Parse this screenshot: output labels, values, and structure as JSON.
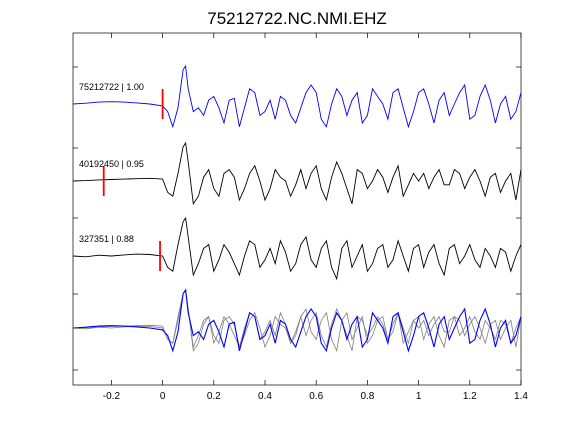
{
  "chart_data": {
    "type": "line",
    "title": "75212722.NC.NMI.EHZ",
    "xlabel": "",
    "ylabel": "",
    "xlim": [
      -0.35,
      1.4
    ],
    "x_ticks": [
      "-0.2",
      "0",
      "0.2",
      "0.4",
      "0.6",
      "0.8",
      "1",
      "1.2",
      "1.4"
    ],
    "x_tick_values": [
      -0.2,
      0,
      0.2,
      0.4,
      0.6,
      0.8,
      1.0,
      1.2,
      1.4
    ],
    "grid": false,
    "colors": {
      "main": "#0000ff",
      "other": "#000000",
      "overlay_gray": "#7f7f7f",
      "pick": "#ff0000"
    },
    "series": [
      {
        "label": "75212722 | 1.00",
        "color": "#0000ff",
        "pick_time": 0.0,
        "x": [
          -0.35,
          -0.3,
          -0.25,
          -0.2,
          -0.15,
          -0.1,
          -0.05,
          0.0,
          0.02,
          0.04,
          0.06,
          0.08,
          0.09,
          0.1,
          0.12,
          0.14,
          0.16,
          0.18,
          0.2,
          0.22,
          0.24,
          0.26,
          0.28,
          0.3,
          0.32,
          0.34,
          0.36,
          0.38,
          0.4,
          0.42,
          0.44,
          0.46,
          0.48,
          0.5,
          0.52,
          0.54,
          0.56,
          0.58,
          0.6,
          0.62,
          0.64,
          0.66,
          0.68,
          0.7,
          0.72,
          0.74,
          0.76,
          0.78,
          0.8,
          0.82,
          0.84,
          0.86,
          0.88,
          0.9,
          0.92,
          0.94,
          0.96,
          0.98,
          1.0,
          1.02,
          1.04,
          1.06,
          1.08,
          1.1,
          1.12,
          1.14,
          1.16,
          1.18,
          1.2,
          1.22,
          1.24,
          1.26,
          1.28,
          1.3,
          1.32,
          1.34,
          1.36,
          1.38,
          1.4
        ],
        "y": [
          0.0,
          0.02,
          0.05,
          0.06,
          0.05,
          0.03,
          0.0,
          -0.05,
          -0.2,
          -0.6,
          -0.1,
          0.9,
          1.0,
          0.4,
          -0.2,
          -0.1,
          -0.3,
          0.1,
          0.2,
          -0.1,
          -0.5,
          0.1,
          0.15,
          -0.6,
          -0.1,
          0.4,
          0.3,
          -0.3,
          -0.2,
          0.1,
          -0.4,
          0.2,
          0.1,
          -0.3,
          -0.5,
          -0.1,
          0.3,
          0.5,
          0.3,
          -0.4,
          -0.6,
          0.0,
          0.4,
          0.2,
          -0.3,
          0.1,
          0.3,
          -0.5,
          -0.3,
          0.4,
          0.2,
          0.0,
          -0.4,
          0.3,
          0.4,
          -0.1,
          -0.6,
          -0.2,
          0.3,
          0.4,
          0.0,
          -0.5,
          0.1,
          0.3,
          -0.3,
          0.0,
          0.3,
          0.5,
          -0.4,
          -0.3,
          0.2,
          0.5,
          0.1,
          -0.5,
          0.0,
          0.2,
          -0.4,
          -0.2,
          0.3
        ]
      },
      {
        "label": "40192450 | 0.95",
        "color": "#000000",
        "pick_time": -0.23,
        "x": [
          -0.35,
          -0.3,
          -0.25,
          -0.2,
          -0.15,
          -0.1,
          -0.05,
          0.0,
          0.02,
          0.04,
          0.06,
          0.08,
          0.09,
          0.1,
          0.12,
          0.14,
          0.16,
          0.18,
          0.2,
          0.22,
          0.24,
          0.26,
          0.28,
          0.3,
          0.32,
          0.34,
          0.36,
          0.38,
          0.4,
          0.42,
          0.44,
          0.46,
          0.48,
          0.5,
          0.52,
          0.54,
          0.56,
          0.58,
          0.6,
          0.62,
          0.64,
          0.66,
          0.68,
          0.7,
          0.72,
          0.74,
          0.76,
          0.78,
          0.8,
          0.82,
          0.84,
          0.86,
          0.88,
          0.9,
          0.92,
          0.94,
          0.96,
          0.98,
          1.0,
          1.02,
          1.04,
          1.06,
          1.08,
          1.1,
          1.12,
          1.14,
          1.16,
          1.18,
          1.2,
          1.22,
          1.24,
          1.26,
          1.28,
          1.3,
          1.32,
          1.34,
          1.36,
          1.38,
          1.4
        ],
        "y": [
          0.0,
          0.01,
          0.03,
          0.04,
          0.05,
          0.06,
          0.07,
          0.05,
          -0.3,
          -0.4,
          0.2,
          0.9,
          1.0,
          0.5,
          -0.6,
          -0.4,
          0.1,
          0.3,
          -0.2,
          -0.4,
          0.2,
          0.3,
          0.1,
          -0.5,
          -0.2,
          0.2,
          0.4,
          0.0,
          -0.5,
          -0.2,
          0.3,
          0.1,
          0.0,
          -0.4,
          -0.1,
          0.3,
          -0.2,
          0.2,
          0.4,
          -0.2,
          -0.5,
          0.1,
          0.5,
          0.2,
          -0.2,
          -0.6,
          0.3,
          0.2,
          -0.2,
          0.0,
          0.3,
          0.1,
          -0.3,
          0.1,
          0.4,
          -0.4,
          -0.1,
          0.2,
          0.0,
          0.2,
          -0.2,
          0.1,
          0.3,
          -0.1,
          -0.1,
          0.3,
          0.2,
          -0.2,
          0.1,
          0.3,
          0.0,
          -0.4,
          0.1,
          0.2,
          -0.3,
          0.0,
          0.2,
          -0.5,
          0.3
        ]
      },
      {
        "label": "327351 | 0.88",
        "color": "#000000",
        "pick_time": -0.01,
        "x": [
          -0.35,
          -0.3,
          -0.25,
          -0.2,
          -0.15,
          -0.1,
          -0.05,
          0.0,
          0.02,
          0.04,
          0.06,
          0.08,
          0.09,
          0.1,
          0.12,
          0.14,
          0.16,
          0.18,
          0.2,
          0.22,
          0.24,
          0.26,
          0.28,
          0.3,
          0.32,
          0.34,
          0.36,
          0.38,
          0.4,
          0.42,
          0.44,
          0.46,
          0.48,
          0.5,
          0.52,
          0.54,
          0.56,
          0.58,
          0.6,
          0.62,
          0.64,
          0.66,
          0.68,
          0.7,
          0.72,
          0.74,
          0.76,
          0.78,
          0.8,
          0.82,
          0.84,
          0.86,
          0.88,
          0.9,
          0.92,
          0.94,
          0.96,
          0.98,
          1.0,
          1.02,
          1.04,
          1.06,
          1.08,
          1.1,
          1.12,
          1.14,
          1.16,
          1.18,
          1.2,
          1.22,
          1.24,
          1.26,
          1.28,
          1.3,
          1.32,
          1.34,
          1.36,
          1.38,
          1.4
        ],
        "y": [
          0.0,
          -0.02,
          0.02,
          0.0,
          0.03,
          0.05,
          0.04,
          0.0,
          -0.3,
          -0.4,
          0.3,
          0.9,
          1.0,
          0.5,
          -0.5,
          -0.2,
          0.2,
          0.3,
          -0.4,
          -0.1,
          0.3,
          0.1,
          -0.2,
          -0.5,
          0.0,
          0.4,
          0.3,
          -0.3,
          -0.1,
          0.2,
          -0.2,
          0.4,
          0.1,
          -0.4,
          -0.2,
          0.3,
          0.5,
          -0.1,
          -0.3,
          0.2,
          0.4,
          -0.3,
          -0.6,
          0.2,
          0.4,
          -0.3,
          0.0,
          0.3,
          -0.4,
          -0.2,
          0.2,
          0.3,
          -0.3,
          -0.1,
          0.4,
          0.0,
          -0.4,
          0.2,
          0.3,
          -0.3,
          0.1,
          0.3,
          -0.2,
          -0.5,
          0.2,
          0.3,
          -0.2,
          0.0,
          0.3,
          -0.1,
          -0.3,
          0.2,
          0.0,
          -0.3,
          0.2,
          0.1,
          -0.4,
          0.0,
          0.3
        ]
      }
    ]
  }
}
